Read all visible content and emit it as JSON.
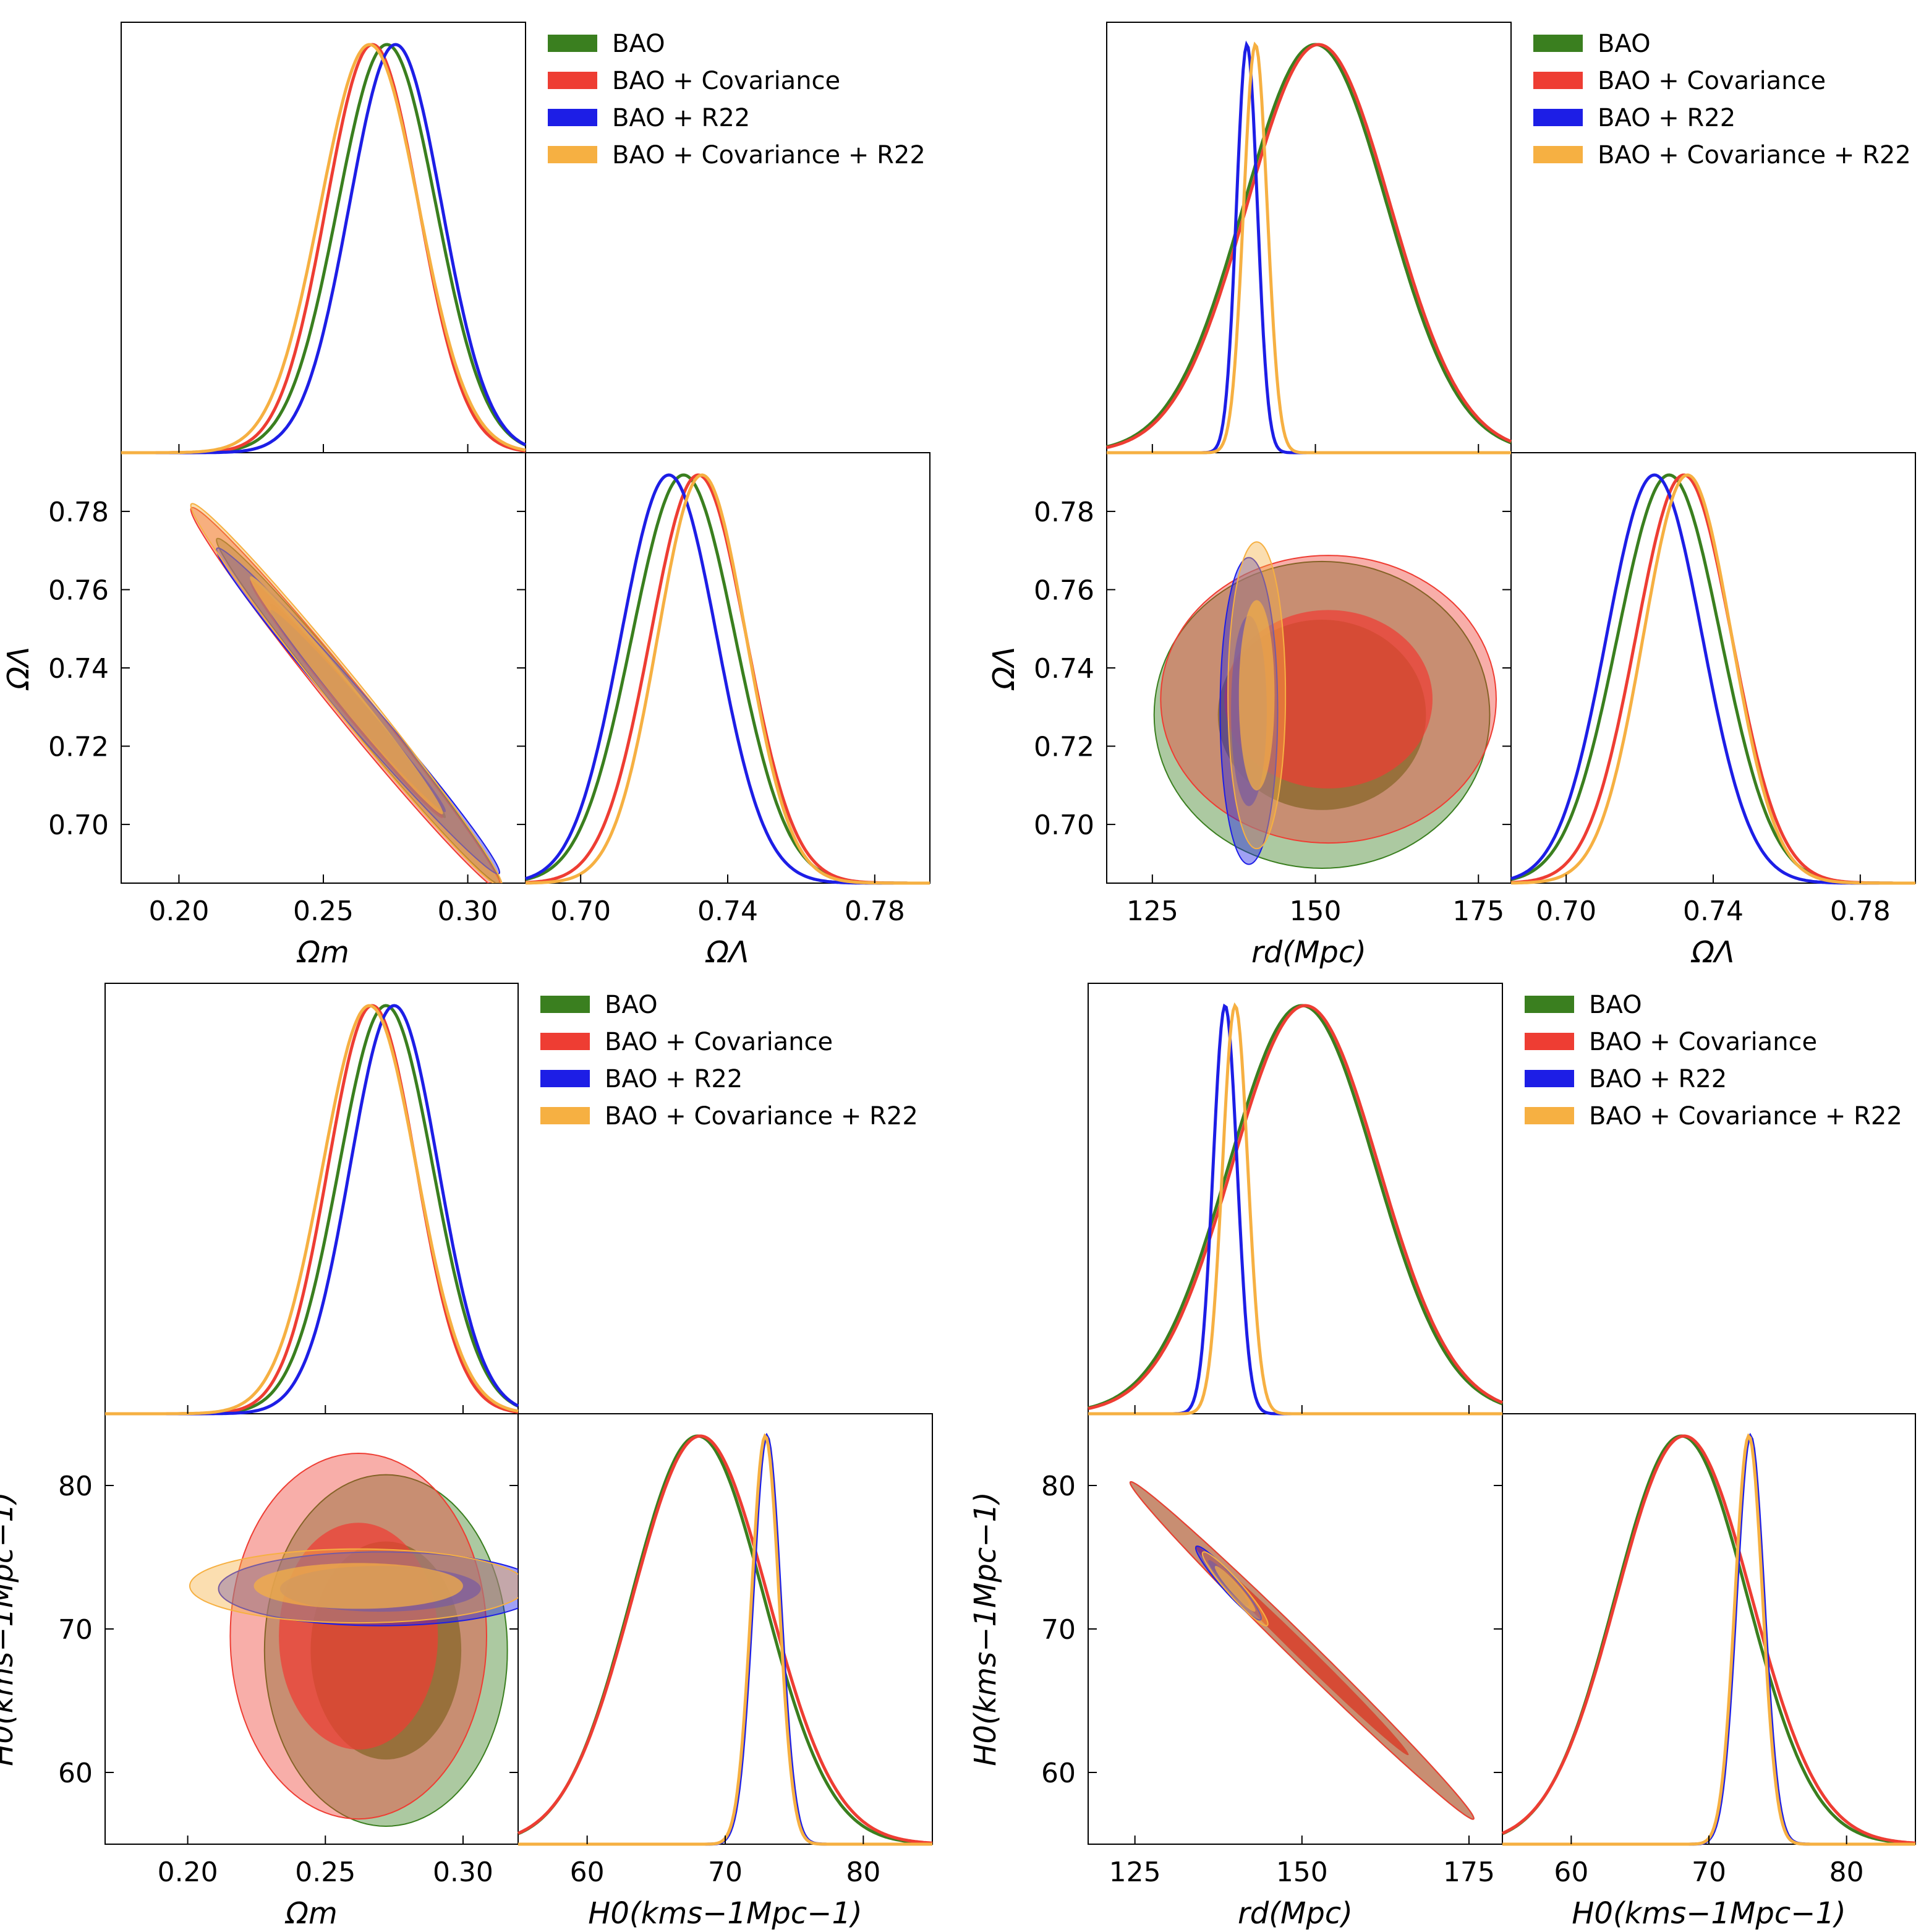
{
  "legend": {
    "entries": [
      {
        "label": "BAO",
        "color": "#3a7f1f"
      },
      {
        "label": "BAO + Covariance",
        "color": "#ee3d33"
      },
      {
        "label": "BAO + R22",
        "color": "#1d1ee6"
      },
      {
        "label": "BAO + Covariance + R22",
        "color": "#f6b042"
      }
    ],
    "placement": "top-right of each corner plot"
  },
  "chart_data": [
    {
      "type": "corner",
      "id": "p1",
      "params": [
        "Ω_m",
        "Ω_Λ"
      ],
      "axis_labels": {
        "x": [
          "Ωm",
          "ΩΛ"
        ],
        "y": [
          "",
          "ΩΛ"
        ]
      },
      "ranges": [
        [
          0.18,
          0.32
        ],
        [
          0.685,
          0.795
        ]
      ],
      "ticks": [
        [
          0.2,
          0.25,
          0.3
        ],
        [
          0.7,
          0.74,
          0.78
        ]
      ],
      "tick_labels": [
        [
          "0.20",
          "0.25",
          "0.30"
        ],
        [
          "0.70",
          "0.74",
          "0.78"
        ]
      ],
      "y_ticks": [
        0.7,
        0.72,
        0.74,
        0.76,
        0.78
      ],
      "y_tick_labels": [
        "0.70",
        "0.72",
        "0.74",
        "0.76",
        "0.78"
      ],
      "marginals": [
        {
          "series": [
            {
              "name": "BAO",
              "mean": 0.272,
              "sigma": 0.017
            },
            {
              "name": "BAO + Covariance",
              "mean": 0.267,
              "sigma": 0.016
            },
            {
              "name": "BAO + R22",
              "mean": 0.275,
              "sigma": 0.016
            },
            {
              "name": "BAO + Covariance + R22",
              "mean": 0.266,
              "sigma": 0.017
            }
          ]
        },
        {
          "series": [
            {
              "name": "BAO",
              "mean": 0.728,
              "sigma": 0.014
            },
            {
              "name": "BAO + Covariance",
              "mean": 0.732,
              "sigma": 0.013
            },
            {
              "name": "BAO + R22",
              "mean": 0.724,
              "sigma": 0.013
            },
            {
              "name": "BAO + Covariance + R22",
              "mean": 0.733,
              "sigma": 0.012
            }
          ]
        }
      ],
      "contours": [
        {
          "name": "BAO",
          "center": [
            0.262,
            0.729
          ],
          "sigma": [
            0.02,
            0.018
          ],
          "rho": -0.99
        },
        {
          "name": "BAO + Covariance",
          "center": [
            0.258,
            0.732
          ],
          "sigma": [
            0.022,
            0.02
          ],
          "rho": -0.99
        },
        {
          "name": "BAO + R22",
          "center": [
            0.262,
            0.729
          ],
          "sigma": [
            0.02,
            0.017
          ],
          "rho": -0.99
        },
        {
          "name": "BAO + Covariance + R22",
          "center": [
            0.258,
            0.733
          ],
          "sigma": [
            0.022,
            0.02
          ],
          "rho": -0.99
        }
      ]
    },
    {
      "type": "corner",
      "id": "p2",
      "params": [
        "r_d",
        "Ω_Λ"
      ],
      "axis_labels": {
        "x": [
          "rd(Mpc)",
          "ΩΛ"
        ],
        "y": [
          "",
          "ΩΛ"
        ]
      },
      "ranges": [
        [
          118,
          180
        ],
        [
          0.685,
          0.795
        ]
      ],
      "ticks": [
        [
          125,
          150,
          175
        ],
        [
          0.7,
          0.74,
          0.78
        ]
      ],
      "tick_labels": [
        [
          "125",
          "150",
          "175"
        ],
        [
          "0.70",
          "0.74",
          "0.78"
        ]
      ],
      "y_ticks": [
        0.7,
        0.72,
        0.74,
        0.76,
        0.78
      ],
      "y_tick_labels": [
        "0.70",
        "0.72",
        "0.74",
        "0.76",
        "0.78"
      ],
      "marginals": [
        {
          "series": [
            {
              "name": "BAO",
              "mean": 150,
              "sigma": 11
            },
            {
              "name": "BAO + Covariance",
              "mean": 150.5,
              "sigma": 11
            },
            {
              "name": "BAO + R22",
              "mean": 139.5,
              "sigma": 1.6
            },
            {
              "name": "BAO + Covariance + R22",
              "mean": 140.8,
              "sigma": 1.8
            }
          ]
        },
        {
          "series": [
            {
              "name": "BAO",
              "mean": 0.728,
              "sigma": 0.014
            },
            {
              "name": "BAO + Covariance",
              "mean": 0.732,
              "sigma": 0.013
            },
            {
              "name": "BAO + R22",
              "mean": 0.724,
              "sigma": 0.013
            },
            {
              "name": "BAO + Covariance + R22",
              "mean": 0.733,
              "sigma": 0.012
            }
          ]
        }
      ],
      "contours": [
        {
          "name": "BAO",
          "center": [
            151,
            0.728
          ],
          "sigma": [
            10.5,
            0.016
          ],
          "rho": 0.0
        },
        {
          "name": "BAO + Covariance",
          "center": [
            152,
            0.732
          ],
          "sigma": [
            10.5,
            0.015
          ],
          "rho": 0.0
        },
        {
          "name": "BAO + R22",
          "center": [
            139.8,
            0.729
          ],
          "sigma": [
            1.8,
            0.016
          ],
          "rho": 0.0
        },
        {
          "name": "BAO + Covariance + R22",
          "center": [
            141,
            0.733
          ],
          "sigma": [
            1.8,
            0.016
          ],
          "rho": 0.0
        }
      ]
    },
    {
      "type": "corner",
      "id": "p3",
      "params": [
        "Ω_m",
        "H_0"
      ],
      "axis_labels": {
        "x": [
          "Ωm",
          "H0(kms−1Mpc−1)"
        ],
        "y": [
          "",
          "H0(kms−1Mpc−1)"
        ]
      },
      "ranges": [
        [
          0.17,
          0.32
        ],
        [
          55,
          85
        ]
      ],
      "ticks": [
        [
          0.2,
          0.25,
          0.3
        ],
        [
          60,
          70,
          80
        ]
      ],
      "tick_labels": [
        [
          "0.20",
          "0.25",
          "0.30"
        ],
        [
          "60",
          "70",
          "80"
        ]
      ],
      "y_ticks": [
        60,
        70,
        80
      ],
      "y_tick_labels": [
        "60",
        "70",
        "80"
      ],
      "marginals": [
        {
          "series": [
            {
              "name": "BAO",
              "mean": 0.272,
              "sigma": 0.017
            },
            {
              "name": "BAO + Covariance",
              "mean": 0.267,
              "sigma": 0.016
            },
            {
              "name": "BAO + R22",
              "mean": 0.275,
              "sigma": 0.016
            },
            {
              "name": "BAO + Covariance + R22",
              "mean": 0.266,
              "sigma": 0.017
            }
          ]
        },
        {
          "series": [
            {
              "name": "BAO",
              "mean": 68.0,
              "sigma": 4.8
            },
            {
              "name": "BAO + Covariance",
              "mean": 68.2,
              "sigma": 4.9
            },
            {
              "name": "BAO + R22",
              "mean": 73.0,
              "sigma": 1.0
            },
            {
              "name": "BAO + Covariance + R22",
              "mean": 72.9,
              "sigma": 1.0
            }
          ]
        }
      ],
      "contours": [
        {
          "name": "BAO",
          "center": [
            0.272,
            68.5
          ],
          "sigma": [
            0.018,
            5.0
          ],
          "rho": 0.0
        },
        {
          "name": "BAO + Covariance",
          "center": [
            0.262,
            69.5
          ],
          "sigma": [
            0.019,
            5.2
          ],
          "rho": 0.0
        },
        {
          "name": "BAO + R22",
          "center": [
            0.27,
            72.8
          ],
          "sigma": [
            0.024,
            1.05
          ],
          "rho": 0.0
        },
        {
          "name": "BAO + Covariance + R22",
          "center": [
            0.262,
            73.0
          ],
          "sigma": [
            0.025,
            1.05
          ],
          "rho": 0.0
        }
      ]
    },
    {
      "type": "corner",
      "id": "p4",
      "params": [
        "r_d",
        "H_0"
      ],
      "axis_labels": {
        "x": [
          "rd(Mpc)",
          "H0(kms−1Mpc−1)"
        ],
        "y": [
          "",
          "H0(kms−1Mpc−1)"
        ]
      },
      "ranges": [
        [
          118,
          180
        ],
        [
          55,
          85
        ]
      ],
      "ticks": [
        [
          125,
          150,
          175
        ],
        [
          60,
          70,
          80
        ]
      ],
      "tick_labels": [
        [
          "125",
          "150",
          "175"
        ],
        [
          "60",
          "70",
          "80"
        ]
      ],
      "y_ticks": [
        60,
        70,
        80
      ],
      "y_tick_labels": [
        "60",
        "70",
        "80"
      ],
      "marginals": [
        {
          "series": [
            {
              "name": "BAO",
              "mean": 150,
              "sigma": 11
            },
            {
              "name": "BAO + Covariance",
              "mean": 150.5,
              "sigma": 11
            },
            {
              "name": "BAO + R22",
              "mean": 138.5,
              "sigma": 1.8
            },
            {
              "name": "BAO + Covariance + R22",
              "mean": 140.0,
              "sigma": 1.9
            }
          ]
        },
        {
          "series": [
            {
              "name": "BAO",
              "mean": 68.0,
              "sigma": 4.8
            },
            {
              "name": "BAO + Covariance",
              "mean": 68.2,
              "sigma": 4.9
            },
            {
              "name": "BAO + R22",
              "mean": 73.0,
              "sigma": 1.0
            },
            {
              "name": "BAO + Covariance + R22",
              "mean": 72.9,
              "sigma": 1.0
            }
          ]
        }
      ],
      "contours": [
        {
          "name": "BAO",
          "center": [
            150,
            68.5
          ],
          "sigma": [
            10.5,
            4.8
          ],
          "rho": -0.995
        },
        {
          "name": "BAO + Covariance",
          "center": [
            150,
            68.5
          ],
          "sigma": [
            10.5,
            4.8
          ],
          "rho": -0.995
        },
        {
          "name": "BAO + R22",
          "center": [
            139,
            73.2
          ],
          "sigma": [
            2.0,
            1.05
          ],
          "rho": -0.95
        },
        {
          "name": "BAO + Covariance + R22",
          "center": [
            140,
            72.8
          ],
          "sigma": [
            2.0,
            1.05
          ],
          "rho": -0.95
        }
      ]
    }
  ]
}
